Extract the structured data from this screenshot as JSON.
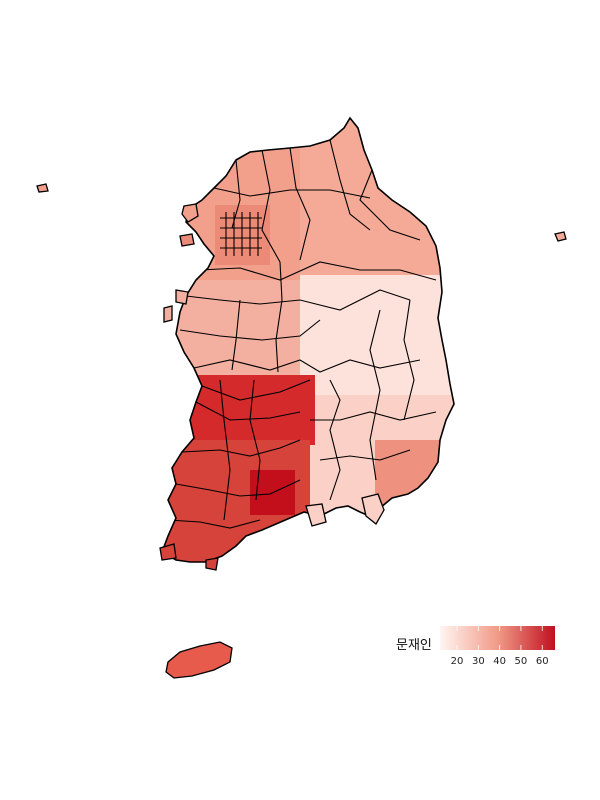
{
  "legend": {
    "title": "문재인",
    "ticks": [
      "20",
      "30",
      "40",
      "50",
      "60"
    ],
    "domain": [
      12,
      66
    ]
  },
  "colors": {
    "low": "#fff5f2",
    "mid": "#f19b88",
    "high": "#c0101f",
    "border": "#000000"
  }
}
